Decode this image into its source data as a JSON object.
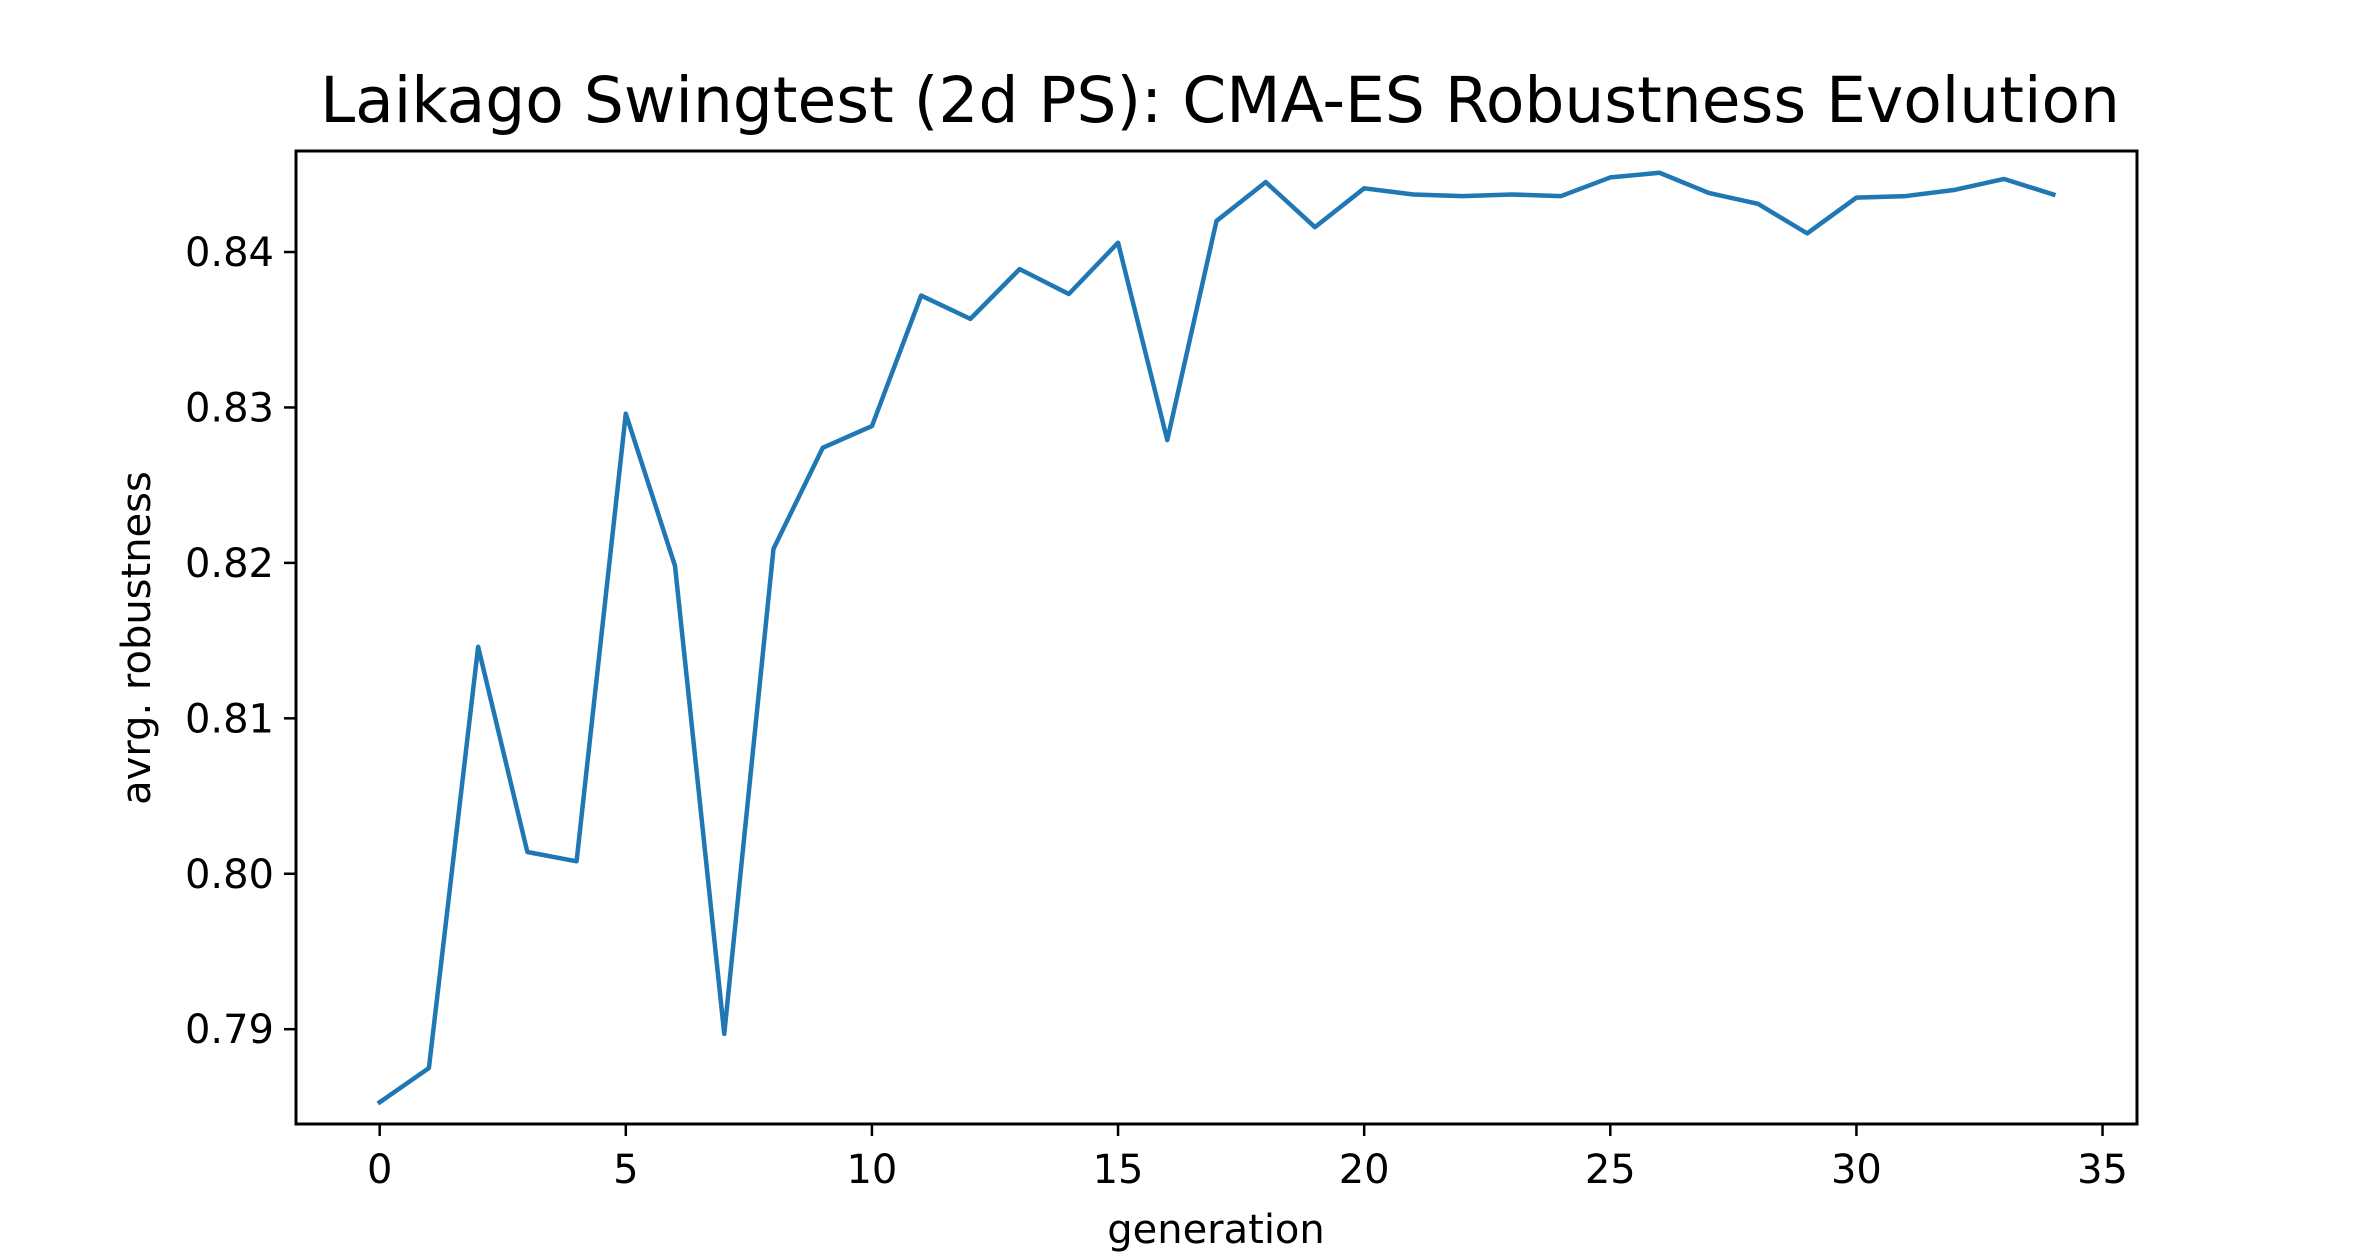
{
  "chart_data": {
    "type": "line",
    "title": "Laikago Swingtest (2d PS): CMA-ES Robustness Evolution",
    "xlabel": "generation",
    "ylabel": "avrg. robustness",
    "xlim": [
      -1.7,
      35.7
    ],
    "ylim": [
      0.7839,
      0.8465
    ],
    "x_ticks": [
      0,
      5,
      10,
      15,
      20,
      25,
      30,
      35
    ],
    "x_tick_labels": [
      "0",
      "5",
      "10",
      "15",
      "20",
      "25",
      "30",
      "35"
    ],
    "y_ticks": [
      0.79,
      0.8,
      0.81,
      0.82,
      0.83,
      0.84
    ],
    "y_tick_labels": [
      "0.79",
      "0.80",
      "0.81",
      "0.82",
      "0.83",
      "0.84"
    ],
    "grid": false,
    "series": [
      {
        "color": "#1f77b4",
        "x": [
          0,
          1,
          2,
          3,
          4,
          5,
          6,
          7,
          8,
          9,
          10,
          11,
          12,
          13,
          14,
          15,
          16,
          17,
          18,
          19,
          20,
          21,
          22,
          23,
          24,
          25,
          26,
          27,
          28,
          29,
          30,
          31,
          32,
          33,
          34
        ],
        "values": [
          0.7853,
          0.7875,
          0.8146,
          0.8014,
          0.8008,
          0.8296,
          0.8198,
          0.7897,
          0.8209,
          0.8274,
          0.8288,
          0.8372,
          0.8357,
          0.8389,
          0.8373,
          0.8406,
          0.8279,
          0.842,
          0.8445,
          0.8416,
          0.8441,
          0.8437,
          0.8436,
          0.8437,
          0.8436,
          0.8448,
          0.8451,
          0.8438,
          0.8431,
          0.8412,
          0.8435,
          0.8436,
          0.844,
          0.8447,
          0.8437
        ]
      }
    ]
  }
}
